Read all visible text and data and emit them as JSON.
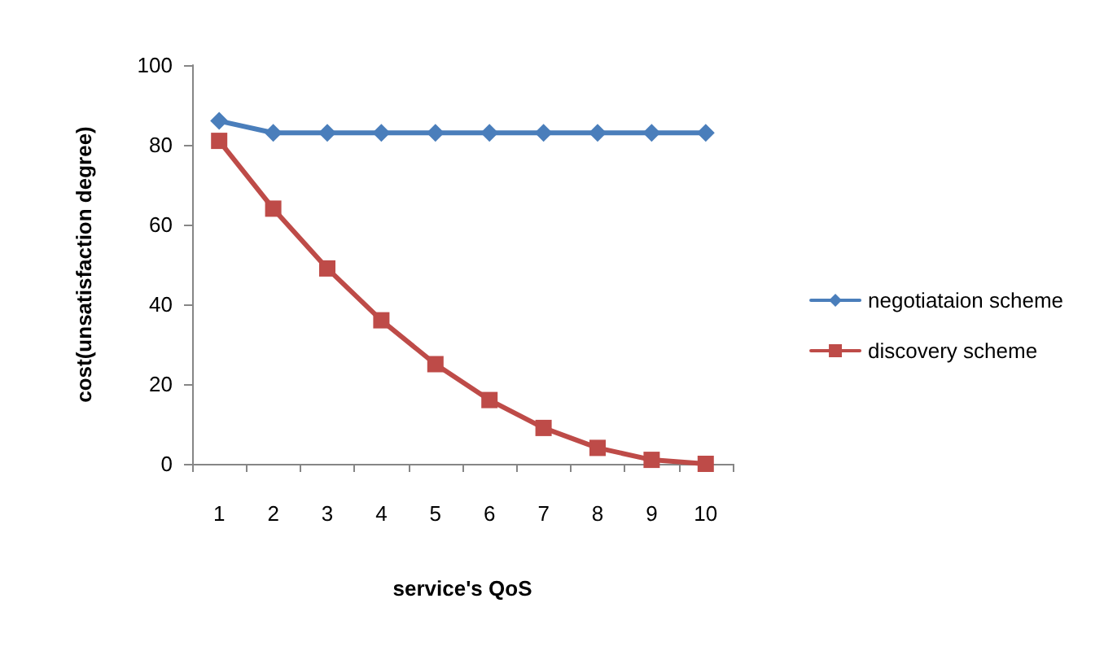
{
  "chart_data": {
    "type": "line",
    "xlabel": "service's QoS",
    "ylabel": "cost(unsatisfaction degree)",
    "categories": [
      "1",
      "2",
      "3",
      "4",
      "5",
      "6",
      "7",
      "8",
      "9",
      "10"
    ],
    "series": [
      {
        "name": "negotiataion scheme",
        "color": "#4a7ebb",
        "marker": "diamond",
        "values": [
          86,
          83,
          83,
          83,
          83,
          83,
          83,
          83,
          83,
          83
        ]
      },
      {
        "name": "discovery scheme",
        "color": "#be4b48",
        "marker": "square",
        "values": [
          81,
          64,
          49,
          36,
          25,
          16,
          9,
          4,
          1,
          0
        ]
      }
    ],
    "ylim": [
      0,
      100
    ],
    "yticks": [
      0,
      20,
      40,
      60,
      80,
      100
    ],
    "grid": false,
    "legend": "right"
  }
}
